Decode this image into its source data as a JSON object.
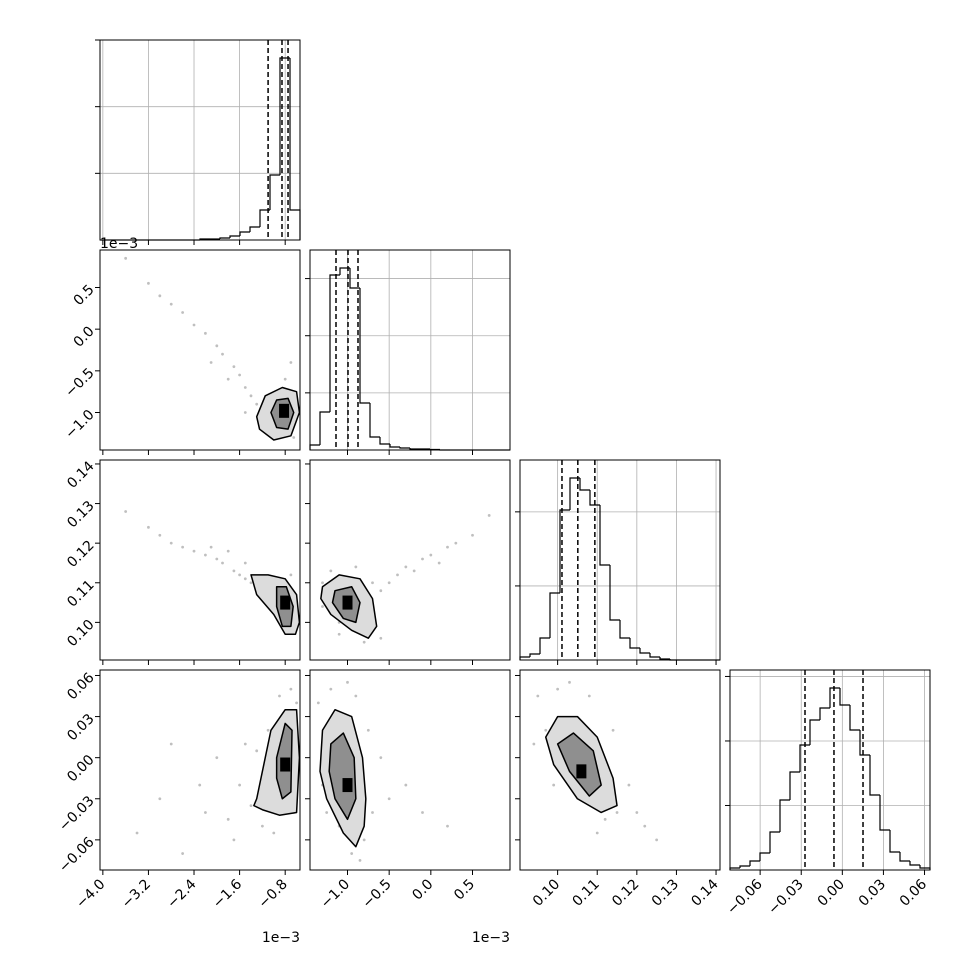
{
  "chart_data": {
    "type": "corner",
    "color": "#000000",
    "point_color": "#000000",
    "contour_fills": [
      "#dcdcdc",
      "#8f8f8f"
    ],
    "grid": true,
    "parameters": [
      {
        "lim": [
          -4.05,
          -0.54
        ],
        "offset_text": "1e−3",
        "ticks": [
          {
            "value": -4.0,
            "label": "−4.0"
          },
          {
            "value": -3.2,
            "label": "−3.2"
          },
          {
            "value": -2.4,
            "label": "−2.4"
          },
          {
            "value": -1.6,
            "label": "−1.6"
          },
          {
            "value": -0.8,
            "label": "−0.8"
          }
        ]
      },
      {
        "lim": [
          -1.45,
          0.95
        ],
        "offset_text": "1e−3",
        "ticks": [
          {
            "value": -1.0,
            "label": "−1.0"
          },
          {
            "value": -0.5,
            "label": "−0.5"
          },
          {
            "value": 0,
            "label": "0.0"
          },
          {
            "value": 0.5,
            "label": "0.5"
          }
        ]
      },
      {
        "lim": [
          0.0905,
          0.141
        ],
        "ticks": [
          {
            "value": 0.1,
            "label": "0.10"
          },
          {
            "value": 0.11,
            "label": "0.11"
          },
          {
            "value": 0.12,
            "label": "0.12"
          },
          {
            "value": 0.13,
            "label": "0.13"
          },
          {
            "value": 0.14,
            "label": "0.14"
          }
        ]
      },
      {
        "lim": [
          -0.082,
          0.064
        ],
        "ticks": [
          {
            "value": -0.06,
            "label": "−0.06"
          },
          {
            "value": -0.03,
            "label": "−0.03"
          },
          {
            "value": 0,
            "label": "0.00"
          },
          {
            "value": 0.03,
            "label": "0.03"
          },
          {
            "value": 0.06,
            "label": "0.06"
          }
        ]
      }
    ],
    "histograms": [
      {
        "bins": [
          -4.05,
          -3.8745,
          -3.699,
          -3.5235,
          -3.348,
          -3.1725,
          -2.997,
          -2.8215,
          -2.646,
          -2.4705,
          -2.295,
          -2.1195,
          -1.944,
          -1.7685,
          -1.593,
          -1.4175,
          -1.242,
          -1.0665,
          -0.891,
          -0.7155,
          -0.54
        ],
        "counts": [
          0,
          0,
          0,
          0,
          0,
          0,
          0,
          0,
          0,
          0,
          15,
          15,
          30,
          60,
          120,
          195,
          450,
          975,
          2730,
          450
        ],
        "ylim": [
          0,
          3000
        ],
        "yticks": [
          1000,
          2000,
          3000
        ],
        "quantiles": [
          -1.1,
          -0.856,
          -0.75
        ]
      },
      {
        "bins": [
          -1.45,
          -1.33,
          -1.21,
          -1.09,
          -0.97,
          -0.85,
          -0.73,
          -0.61,
          -0.49,
          -0.37,
          -0.25,
          -0.13,
          -0.01,
          0.11,
          0.23,
          0.35,
          0.47,
          0.59,
          0.71,
          0.83,
          0.95
        ],
        "counts": [
          88,
          665,
          3063,
          3185,
          2835,
          823,
          228,
          105,
          53,
          35,
          18,
          18,
          9,
          0,
          0,
          0,
          0,
          0,
          0,
          0
        ],
        "ylim": [
          0,
          3500
        ],
        "yticks": [
          1000,
          2000,
          3000
        ],
        "quantiles": [
          -1.138,
          -0.994,
          -0.874
        ]
      },
      {
        "bins": [
          0.0905,
          0.093025,
          0.09555,
          0.098075,
          0.1006,
          0.103125,
          0.10565,
          0.108175,
          0.1107,
          0.113225,
          0.11575,
          0.118275,
          0.1208,
          0.123325,
          0.12585,
          0.128375,
          0.1309,
          0.133425,
          0.13595,
          0.138475,
          0.141
        ],
        "counts": [
          41,
          81,
          297,
          905,
          2025,
          2457,
          2295,
          2093,
          1283,
          540,
          297,
          162,
          95,
          41,
          14,
          0,
          0,
          0,
          0,
          0
        ],
        "ylim": [
          0,
          2700
        ],
        "yticks": [
          1000,
          2000
        ],
        "quantiles": [
          0.1011,
          0.1051,
          0.1094
        ]
      },
      {
        "bins": [
          -0.082,
          -0.0747,
          -0.0674,
          -0.0601,
          -0.0528,
          -0.0455,
          -0.0382,
          -0.0309,
          -0.0236,
          -0.0163,
          -0.009,
          -0.0017,
          0.0056,
          0.0129,
          0.0202,
          0.0275,
          0.0348,
          0.0421,
          0.0494,
          0.0567,
          0.064
        ],
        "counts": [
          31,
          62,
          140,
          264,
          589,
          1085,
          1519,
          1938,
          2325,
          2511,
          2821,
          2558,
          2170,
          1783,
          1163,
          620,
          279,
          140,
          78,
          31
        ],
        "ylim": [
          0,
          3100
        ],
        "yticks": [
          1000,
          2000,
          3000
        ],
        "quantiles": [
          -0.02725,
          -0.0061,
          0.0151
        ]
      }
    ],
    "pairs": [
      [
        {
          "points": {
            "x": [
              -3.6,
              -3.2,
              -3.0,
              -2.8,
              -2.6,
              -2.4,
              -2.2,
              -2.0,
              -1.9,
              -1.7,
              -1.6,
              -1.5,
              -1.4,
              -1.3,
              -1.2,
              -1.1,
              -1.0,
              -0.9,
              -0.8,
              -0.7,
              -0.65,
              -1.5,
              -1.8,
              -2.1
            ],
            "y": [
              0.85,
              0.55,
              0.4,
              0.3,
              0.2,
              0.05,
              -0.05,
              -0.2,
              -0.3,
              -0.45,
              -0.55,
              -0.7,
              -0.8,
              -0.9,
              -0.95,
              -0.85,
              -1.1,
              -1.2,
              -0.6,
              -0.4,
              -1.3,
              -1.0,
              -0.6,
              -0.4
            ]
          },
          "contours": [
            {
              "x": [
                -1.3,
                -1.15,
                -0.85,
                -0.6,
                -0.55,
                -0.7,
                -1.0,
                -1.25
              ],
              "y": [
                -1.05,
                -0.8,
                -0.7,
                -0.75,
                -1.0,
                -1.28,
                -1.33,
                -1.2
              ]
            },
            {
              "x": [
                -1.05,
                -0.95,
                -0.75,
                -0.65,
                -0.75,
                -0.95
              ],
              "y": [
                -1.0,
                -0.85,
                -0.83,
                -1.0,
                -1.2,
                -1.18
              ]
            }
          ],
          "peak": {
            "x": -0.82,
            "y": -0.98
          }
        }
      ],
      [
        {
          "points": {
            "x": [
              -3.6,
              -3.2,
              -3.0,
              -2.8,
              -2.6,
              -2.4,
              -2.2,
              -2.0,
              -1.9,
              -1.7,
              -1.6,
              -1.5,
              -1.4,
              -1.3,
              -1.2,
              -1.1,
              -1.0,
              -0.9,
              -0.8,
              -0.7,
              -0.65,
              -1.5,
              -1.8,
              -2.1
            ],
            "y": [
              0.128,
              0.124,
              0.122,
              0.12,
              0.119,
              0.118,
              0.117,
              0.116,
              0.115,
              0.113,
              0.112,
              0.111,
              0.11,
              0.109,
              0.108,
              0.107,
              0.104,
              0.1,
              0.108,
              0.112,
              0.098,
              0.115,
              0.118,
              0.119
            ]
          },
          "contours": [
            {
              "x": [
                -1.4,
                -1.1,
                -0.8,
                -0.6,
                -0.55,
                -0.62,
                -0.8,
                -1.0,
                -1.3
              ],
              "y": [
                0.112,
                0.112,
                0.111,
                0.107,
                0.1,
                0.097,
                0.097,
                0.102,
                0.107
              ]
            },
            {
              "x": [
                -0.95,
                -0.78,
                -0.66,
                -0.7,
                -0.85,
                -0.95
              ],
              "y": [
                0.109,
                0.109,
                0.104,
                0.099,
                0.099,
                0.104
              ]
            }
          ],
          "peak": {
            "x": -0.8,
            "y": 0.105
          }
        },
        {
          "points": {
            "x": [
              -1.3,
              -1.2,
              -1.1,
              -0.9,
              -0.8,
              -0.7,
              -0.6,
              -0.5,
              -0.4,
              -0.3,
              -0.2,
              -0.1,
              0.0,
              0.1,
              0.2,
              0.3,
              0.5,
              0.7,
              -0.6,
              -1.3,
              -0.9,
              -1.1
            ],
            "y": [
              0.11,
              0.113,
              0.1,
              0.098,
              0.095,
              0.11,
              0.108,
              0.11,
              0.112,
              0.114,
              0.113,
              0.116,
              0.117,
              0.115,
              0.119,
              0.12,
              0.122,
              0.127,
              0.096,
              0.104,
              0.114,
              0.097
            ]
          },
          "contours": [
            {
              "x": [
                -1.3,
                -1.1,
                -0.85,
                -0.7,
                -0.65,
                -0.75,
                -0.95,
                -1.2,
                -1.32
              ],
              "y": [
                0.109,
                0.112,
                0.111,
                0.106,
                0.099,
                0.096,
                0.098,
                0.102,
                0.106
              ]
            },
            {
              "x": [
                -1.15,
                -0.95,
                -0.85,
                -0.9,
                -1.05,
                -1.18
              ],
              "y": [
                0.108,
                0.109,
                0.105,
                0.1,
                0.101,
                0.105
              ]
            }
          ],
          "peak": {
            "x": -1.0,
            "y": 0.105
          }
        }
      ],
      [
        {
          "points": {
            "x": [
              -3.4,
              -3.0,
              -2.6,
              -2.3,
              -2.0,
              -1.8,
              -1.6,
              -1.4,
              -1.3,
              -1.2,
              -1.1,
              -1.5,
              -1.7,
              -2.2,
              -0.7,
              -0.6,
              -0.65,
              -0.9,
              -1.0,
              -2.8
            ],
            "y": [
              -0.055,
              -0.03,
              -0.07,
              -0.02,
              0.0,
              -0.045,
              -0.02,
              -0.035,
              0.005,
              -0.05,
              0.02,
              0.01,
              -0.06,
              -0.04,
              0.05,
              0.04,
              -0.04,
              0.045,
              -0.055,
              0.01
            ]
          },
          "contours": [
            {
              "x": [
                -1.3,
                -1.05,
                -0.8,
                -0.6,
                -0.55,
                -0.6,
                -0.9,
                -1.2,
                -1.35
              ],
              "y": [
                -0.03,
                0.02,
                0.035,
                0.035,
                0.0,
                -0.04,
                -0.042,
                -0.038,
                -0.035
              ]
            },
            {
              "x": [
                -0.95,
                -0.8,
                -0.68,
                -0.7,
                -0.85,
                -0.95
              ],
              "y": [
                0.0,
                0.025,
                0.02,
                -0.025,
                -0.03,
                -0.015
              ]
            }
          ],
          "peak": {
            "x": -0.8,
            "y": -0.005
          }
        },
        {
          "points": {
            "x": [
              -1.35,
              -1.3,
              -1.2,
              -1.1,
              -0.9,
              -0.8,
              -0.7,
              -0.6,
              -0.5,
              -0.3,
              -0.1,
              0.2,
              -1.0,
              -0.95,
              -1.25,
              -0.75,
              -0.85,
              -1.15
            ],
            "y": [
              0.04,
              -0.02,
              0.05,
              -0.05,
              0.045,
              -0.06,
              -0.04,
              0.0,
              -0.03,
              -0.02,
              -0.04,
              -0.05,
              0.055,
              -0.07,
              -0.04,
              0.02,
              -0.075,
              0.03
            ]
          },
          "contours": [
            {
              "x": [
                -1.3,
                -1.15,
                -0.95,
                -0.82,
                -0.78,
                -0.8,
                -0.9,
                -1.05,
                -1.25,
                -1.33
              ],
              "y": [
                0.02,
                0.035,
                0.03,
                0.0,
                -0.03,
                -0.05,
                -0.065,
                -0.055,
                -0.03,
                -0.01
              ]
            },
            {
              "x": [
                -1.2,
                -1.05,
                -0.92,
                -0.9,
                -1.0,
                -1.15,
                -1.22
              ],
              "y": [
                0.01,
                0.018,
                0.0,
                -0.03,
                -0.045,
                -0.03,
                -0.01
              ]
            }
          ],
          "peak": {
            "x": -1.0,
            "y": -0.02
          }
        },
        {
          "points": {
            "x": [
              0.095,
              0.097,
              0.099,
              0.112,
              0.115,
              0.118,
              0.12,
              0.122,
              0.125,
              0.1,
              0.103,
              0.11,
              0.094,
              0.114,
              0.108
            ],
            "y": [
              0.045,
              0.02,
              -0.02,
              -0.045,
              -0.04,
              -0.02,
              -0.04,
              -0.05,
              -0.06,
              0.05,
              0.055,
              -0.055,
              0.01,
              0.02,
              0.045
            ]
          },
          "contours": [
            {
              "x": [
                0.097,
                0.1,
                0.105,
                0.11,
                0.114,
                0.115,
                0.111,
                0.105,
                0.099
              ],
              "y": [
                0.015,
                0.03,
                0.03,
                0.015,
                -0.015,
                -0.035,
                -0.04,
                -0.03,
                -0.005
              ]
            },
            {
              "x": [
                0.1,
                0.104,
                0.109,
                0.111,
                0.108,
                0.103
              ],
              "y": [
                0.01,
                0.018,
                0.005,
                -0.02,
                -0.028,
                -0.01
              ]
            }
          ],
          "peak": {
            "x": 0.106,
            "y": -0.01
          }
        }
      ]
    ]
  }
}
